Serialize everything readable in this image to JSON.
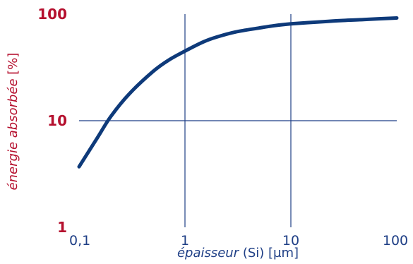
{
  "chart_data": {
    "type": "line",
    "xscale": "log",
    "yscale": "log",
    "xlim": [
      0.1,
      100
    ],
    "ylim": [
      1,
      100
    ],
    "grid": true,
    "x_ticks": [
      "0,1",
      "1",
      "10",
      "100"
    ],
    "y_ticks": [
      "1",
      "10",
      "100"
    ],
    "xlabel_italic": "épaisseur",
    "xlabel_rest": " (Si) [µm]",
    "ylabel_italic": "énergie absorbée",
    "ylabel_rest": " [%]",
    "series": [
      {
        "x": [
          0.1,
          0.15,
          0.2,
          0.3,
          0.5,
          0.7,
          1,
          1.5,
          2,
          3,
          5,
          7,
          10,
          20,
          30,
          50,
          100
        ],
        "y": [
          3.7,
          7,
          11,
          18,
          29,
          37,
          45,
          55,
          61,
          68,
          74,
          78,
          81,
          85,
          87,
          89,
          92
        ],
        "color": "#0e3a7a"
      }
    ],
    "colors": {
      "curve": "#0e3a7a",
      "grid": "#1f3f86",
      "y_ticks": "#b5102e",
      "axis_text": "#1f3f86"
    }
  }
}
